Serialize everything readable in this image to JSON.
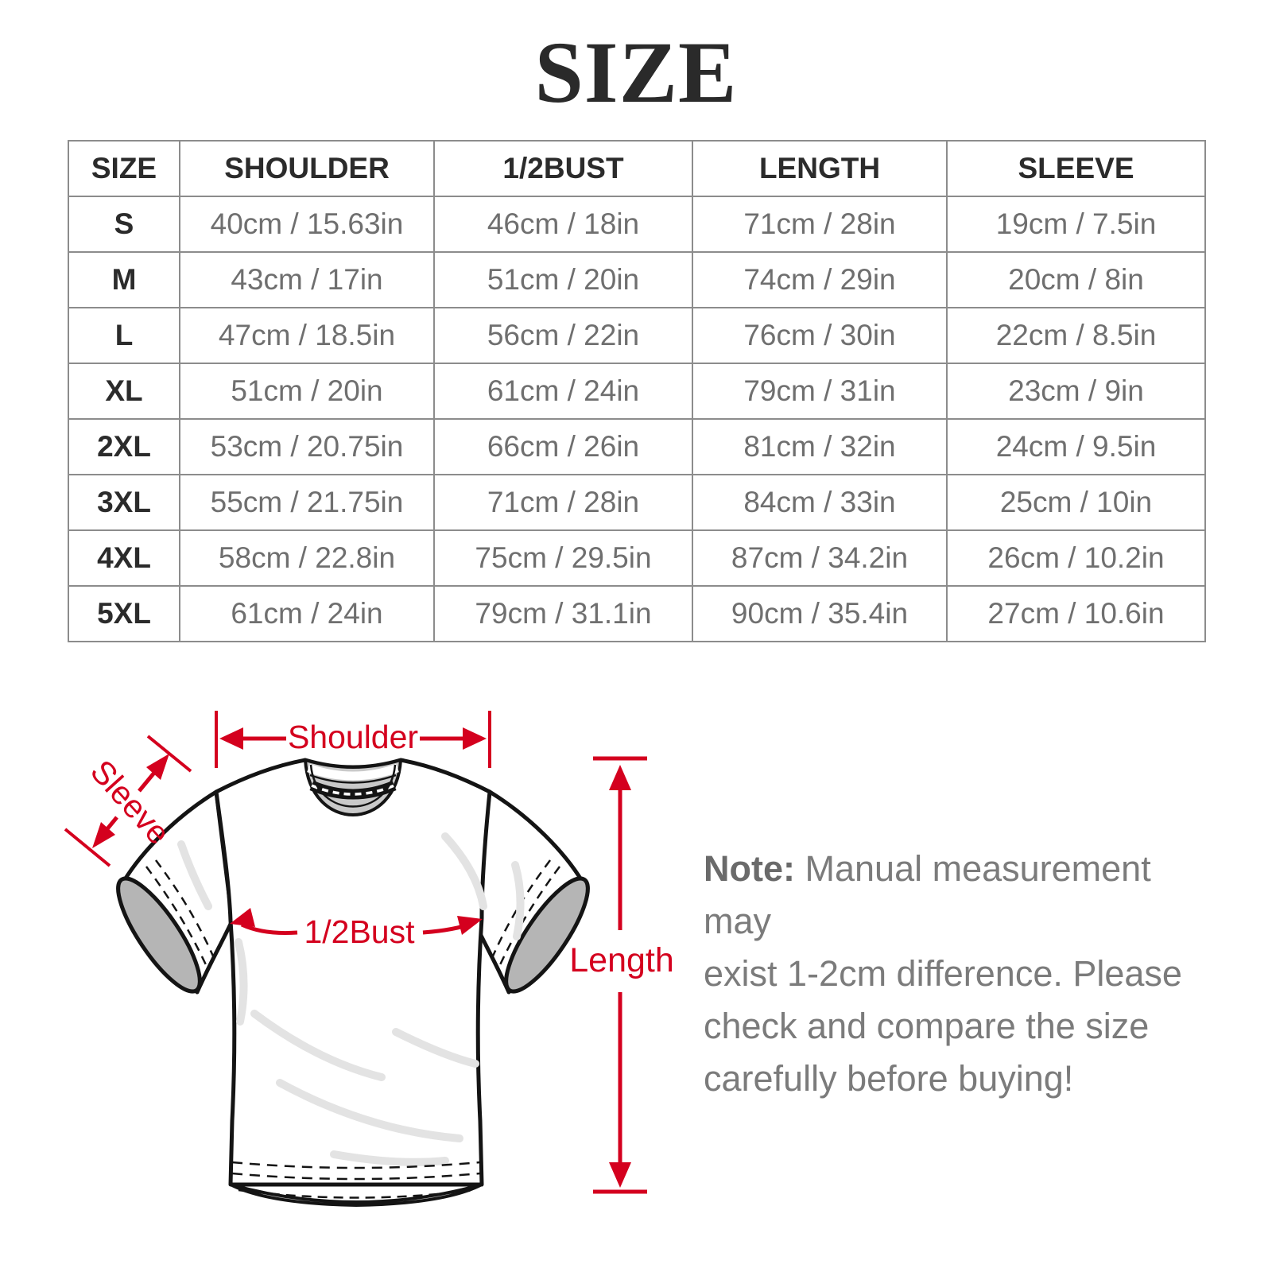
{
  "title": "SIZE",
  "table": {
    "headers": [
      "SIZE",
      "SHOULDER",
      "1/2BUST",
      "LENGTH",
      "SLEEVE"
    ],
    "rows": [
      {
        "size": "S",
        "shoulder": "40cm / 15.63in",
        "bust": "46cm / 18in",
        "length": "71cm / 28in",
        "sleeve": "19cm / 7.5in"
      },
      {
        "size": "M",
        "shoulder": "43cm / 17in",
        "bust": "51cm / 20in",
        "length": "74cm / 29in",
        "sleeve": "20cm / 8in"
      },
      {
        "size": "L",
        "shoulder": "47cm / 18.5in",
        "bust": "56cm / 22in",
        "length": "76cm / 30in",
        "sleeve": "22cm / 8.5in"
      },
      {
        "size": "XL",
        "shoulder": "51cm / 20in",
        "bust": "61cm / 24in",
        "length": "79cm / 31in",
        "sleeve": "23cm / 9in"
      },
      {
        "size": "2XL",
        "shoulder": "53cm / 20.75in",
        "bust": "66cm / 26in",
        "length": "81cm / 32in",
        "sleeve": "24cm / 9.5in"
      },
      {
        "size": "3XL",
        "shoulder": "55cm / 21.75in",
        "bust": "71cm / 28in",
        "length": "84cm / 33in",
        "sleeve": "25cm / 10in"
      },
      {
        "size": "4XL",
        "shoulder": "58cm / 22.8in",
        "bust": "75cm / 29.5in",
        "length": "87cm / 34.2in",
        "sleeve": "26cm / 10.2in"
      },
      {
        "size": "5XL",
        "shoulder": "61cm / 24in",
        "bust": "79cm / 31.1in",
        "length": "90cm / 35.4in",
        "sleeve": "27cm / 10.6in"
      }
    ]
  },
  "diagram": {
    "labels": {
      "shoulder": "Shoulder",
      "sleeve": "Sleeve",
      "bust": "1/2Bust",
      "length": "Length"
    }
  },
  "note": {
    "label": "Note:",
    "lines": [
      "Manual measurement may",
      "exist 1-2cm difference. Please",
      "check and compare the size",
      "carefully before buying!"
    ]
  },
  "colors": {
    "red": "#d4001e",
    "ink": "#2b2b2b",
    "muted": "#6f6f6f",
    "border": "#8c8c8c",
    "note": "#7b7b7b",
    "outline": "#141414",
    "collar_gray": "#c9c9c9",
    "cuff_gray": "#b5b5b5",
    "hem_gray": "#cfcfcf",
    "wrinkle": "#e3e3e3"
  }
}
